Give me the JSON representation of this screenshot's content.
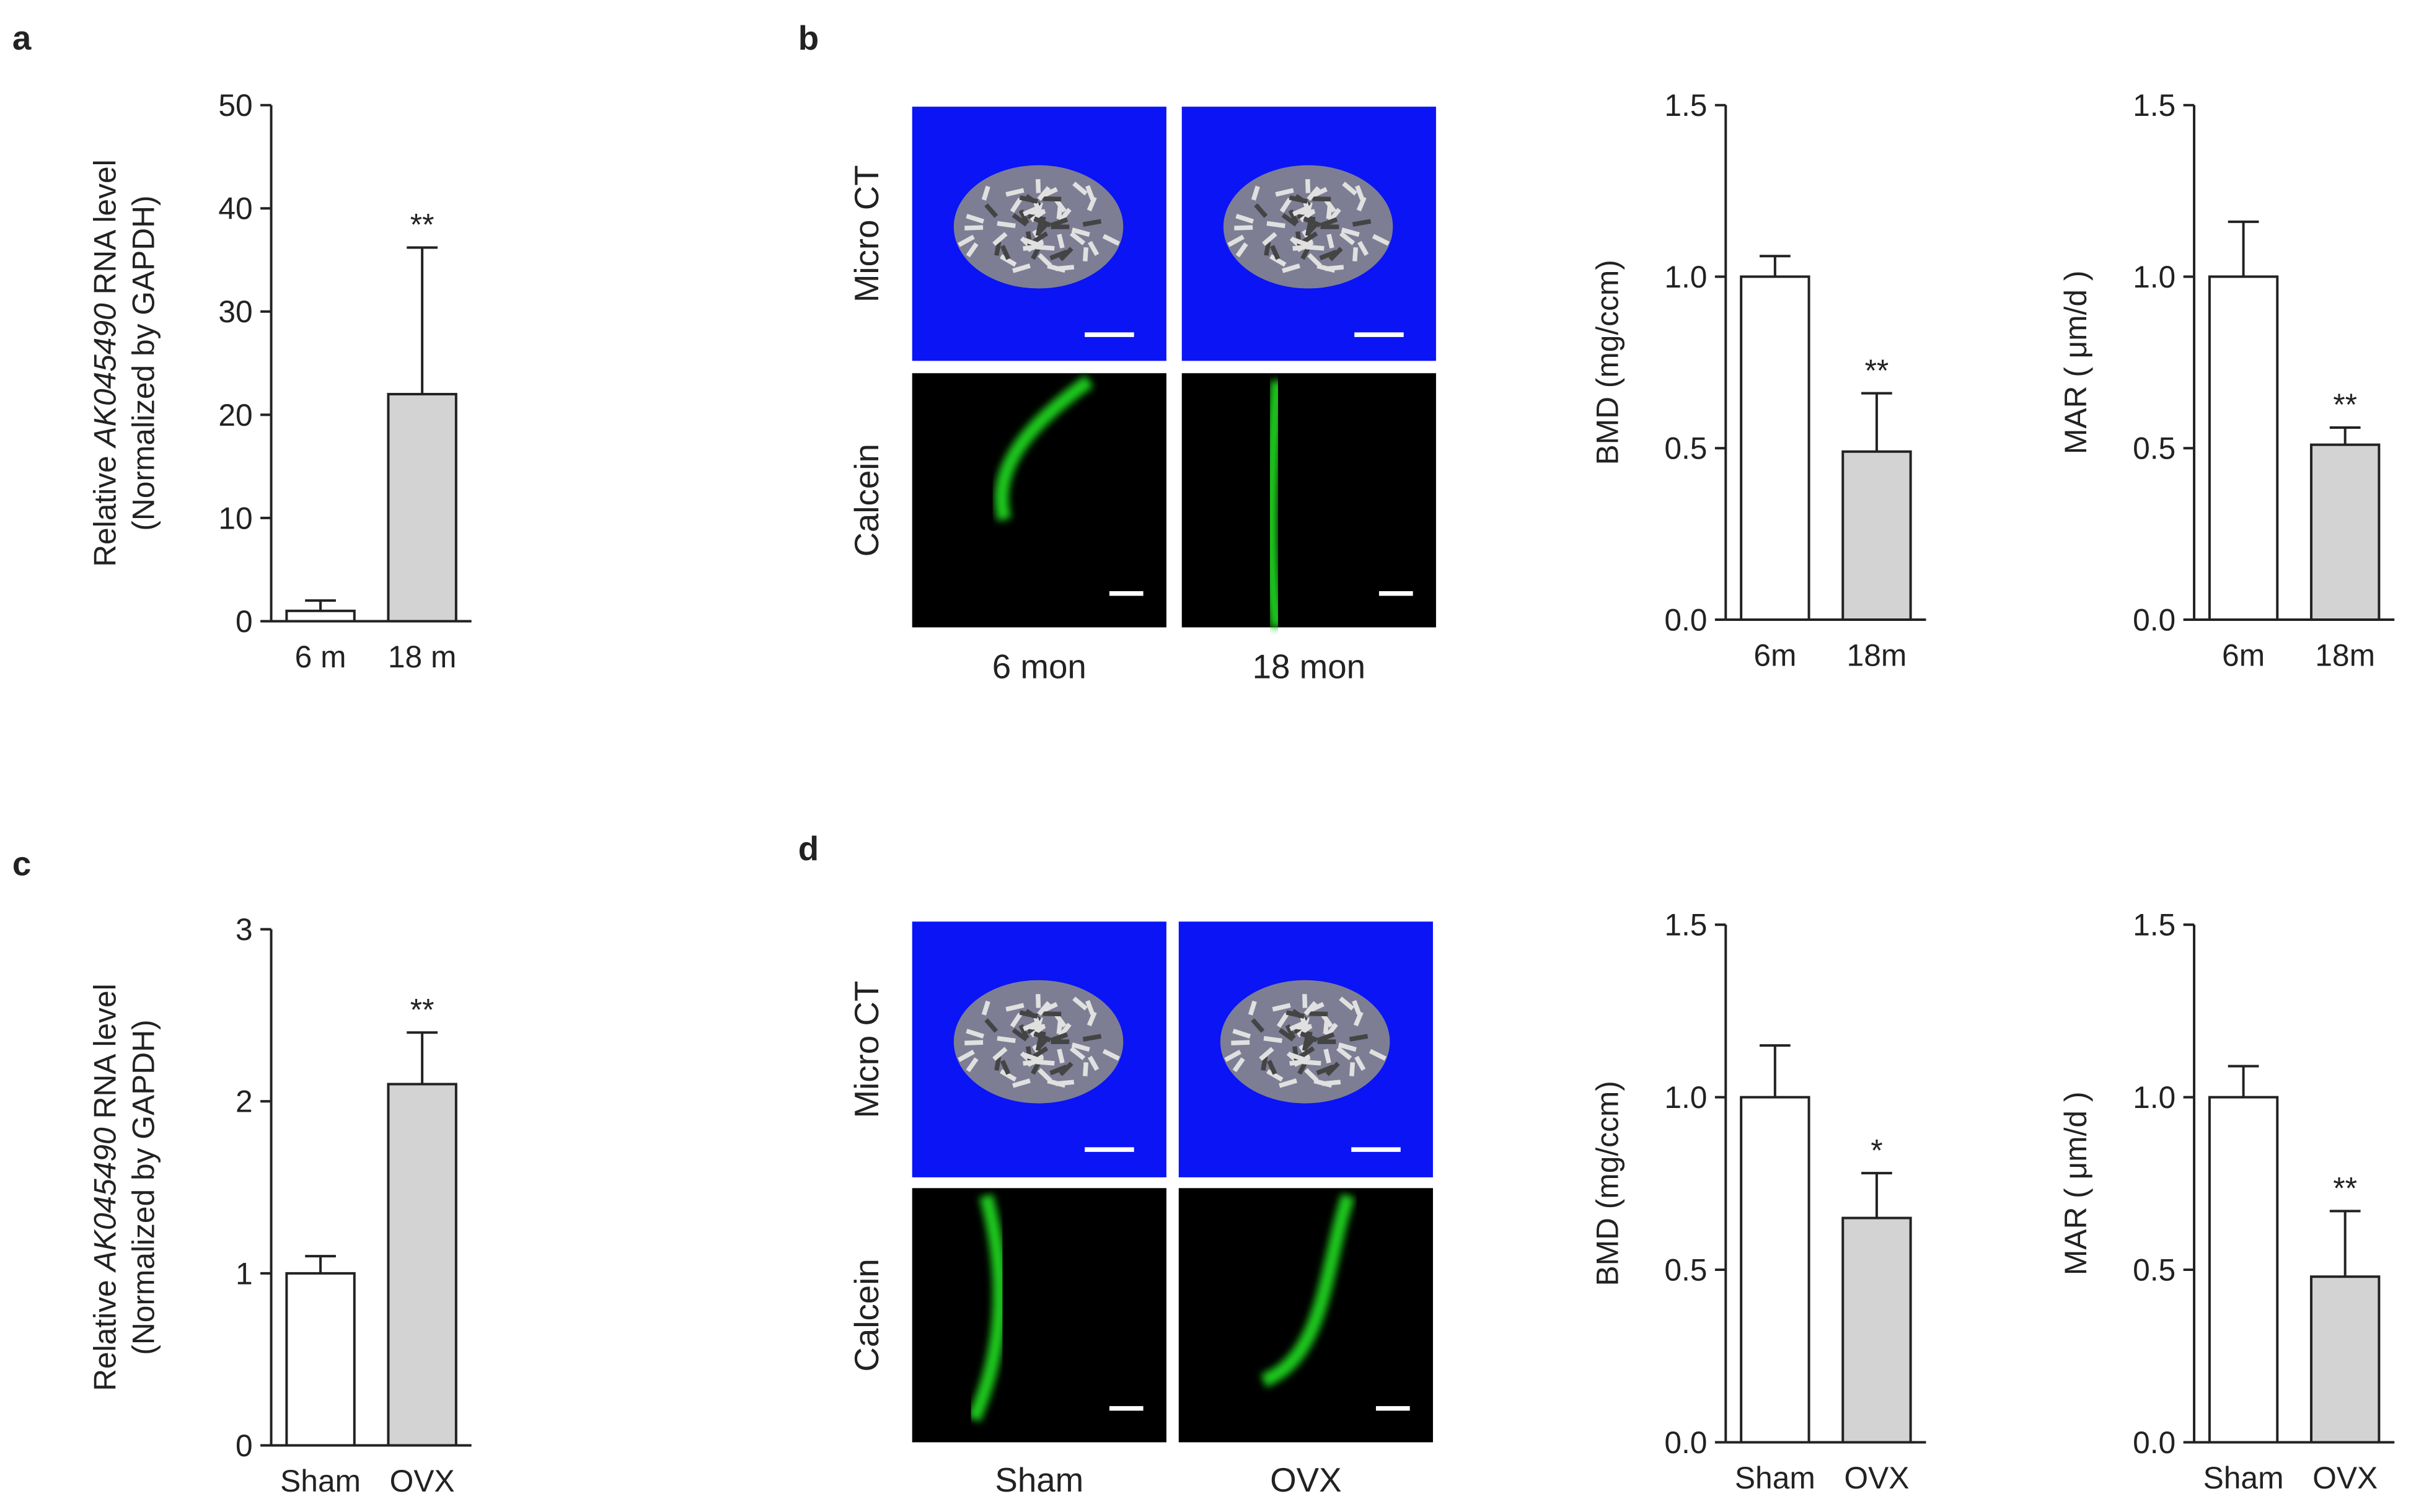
{
  "panel_labels": [
    "a",
    "b",
    "c",
    "d"
  ],
  "image_panels": [
    {
      "row_labels": [
        "Micro CT",
        "Calcein"
      ],
      "column_labels": [
        "6 mon",
        "18 mon"
      ]
    },
    {
      "row_labels": [
        "Micro CT",
        "Calcein"
      ],
      "column_labels": [
        "Sham",
        "OVX"
      ]
    }
  ],
  "chart_data": [
    {
      "type": "bar",
      "y_label_lines": [
        [
          "Relative ",
          "AK045490",
          " RNA level"
        ],
        [
          "(Normalized by GAPDH)"
        ]
      ],
      "categories": [
        "6 m",
        "18 m"
      ],
      "values": [
        1,
        22
      ],
      "errors": [
        1,
        14.2
      ],
      "colors": [
        "#ffffff",
        "#d3d3d3"
      ],
      "significance": [
        null,
        "**"
      ],
      "ylim": [
        0,
        50
      ],
      "yticks": [
        0,
        10,
        20,
        30,
        40,
        50
      ]
    },
    {
      "type": "bar",
      "y_label_lines": [
        [
          "BMD (mg/ccm)"
        ]
      ],
      "categories": [
        "6m",
        "18m"
      ],
      "values": [
        1.0,
        0.49
      ],
      "errors": [
        0.06,
        0.17
      ],
      "colors": [
        "#ffffff",
        "#d3d3d3"
      ],
      "significance": [
        null,
        "**"
      ],
      "ylim": [
        0,
        1.5
      ],
      "yticks": [
        {
          "value": 0,
          "label": "0.0"
        },
        {
          "value": 0.5,
          "label": "0.5"
        },
        {
          "value": 1,
          "label": "1.0"
        },
        {
          "value": 1.5,
          "label": "1.5"
        }
      ]
    },
    {
      "type": "bar",
      "y_label_lines": [
        [
          "MAR ( μm/d )"
        ]
      ],
      "categories": [
        "6m",
        "18m"
      ],
      "values": [
        1.0,
        0.51
      ],
      "errors": [
        0.16,
        0.05
      ],
      "colors": [
        "#ffffff",
        "#d3d3d3"
      ],
      "significance": [
        null,
        "**"
      ],
      "ylim": [
        0,
        1.5
      ],
      "yticks": [
        {
          "value": 0,
          "label": "0.0"
        },
        {
          "value": 0.5,
          "label": "0.5"
        },
        {
          "value": 1,
          "label": "1.0"
        },
        {
          "value": 1.5,
          "label": "1.5"
        }
      ]
    },
    {
      "type": "bar",
      "y_label_lines": [
        [
          "Relative ",
          "AK045490",
          "  RNA level"
        ],
        [
          "(Normalized by GAPDH)"
        ]
      ],
      "categories": [
        "Sham",
        "OVX"
      ],
      "values": [
        1,
        2.1
      ],
      "errors": [
        0.1,
        0.3
      ],
      "colors": [
        "#ffffff",
        "#d3d3d3"
      ],
      "significance": [
        null,
        "**"
      ],
      "ylim": [
        0,
        3
      ],
      "yticks": [
        0,
        1,
        2,
        3
      ]
    },
    {
      "type": "bar",
      "y_label_lines": [
        [
          "BMD (mg/ccm)"
        ]
      ],
      "categories": [
        "Sham",
        "OVX"
      ],
      "values": [
        1.0,
        0.65
      ],
      "errors": [
        0.15,
        0.13
      ],
      "colors": [
        "#ffffff",
        "#d3d3d3"
      ],
      "significance": [
        null,
        "*"
      ],
      "ylim": [
        0,
        1.5
      ],
      "yticks": [
        {
          "value": 0,
          "label": "0.0"
        },
        {
          "value": 0.5,
          "label": "0.5"
        },
        {
          "value": 1,
          "label": "1.0"
        },
        {
          "value": 1.5,
          "label": "1.5"
        }
      ]
    },
    {
      "type": "bar",
      "y_label_lines": [
        [
          "MAR ( μm/d )"
        ]
      ],
      "categories": [
        "Sham",
        "OVX"
      ],
      "values": [
        1.0,
        0.48
      ],
      "errors": [
        0.09,
        0.19
      ],
      "colors": [
        "#ffffff",
        "#d3d3d3"
      ],
      "significance": [
        null,
        "**"
      ],
      "ylim": [
        0,
        1.5
      ],
      "yticks": [
        {
          "value": 0,
          "label": "0.0"
        },
        {
          "value": 0.5,
          "label": "0.5"
        },
        {
          "value": 1,
          "label": "1.0"
        },
        {
          "value": 1.5,
          "label": "1.5"
        }
      ]
    }
  ]
}
